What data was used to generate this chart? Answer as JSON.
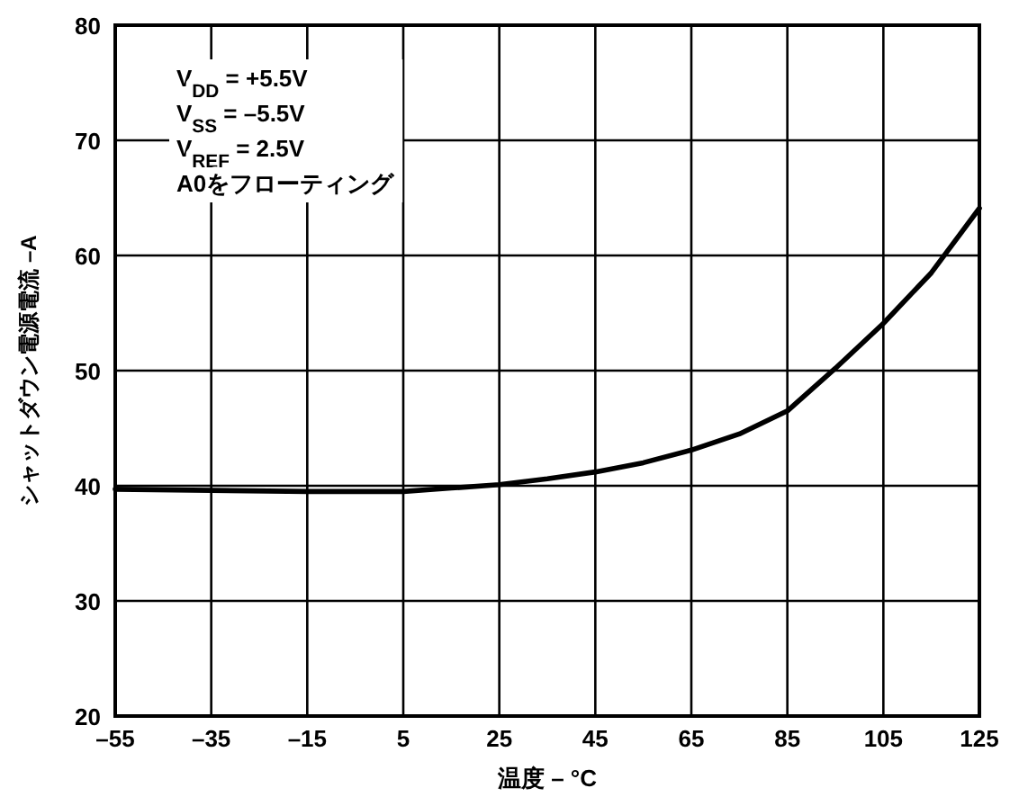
{
  "chart_data": {
    "type": "line",
    "xlabel": "温度 – °C",
    "ylabel": "シャットダウン電源電流 –A",
    "annotations": [
      "V$_{DD}$ = +5.5V",
      "V$_{SS}$ = –5.5V",
      "V$_{REF}$ = 2.5V",
      "A0をフローティング"
    ],
    "x": [
      -55,
      -35,
      -15,
      5,
      15,
      25,
      35,
      45,
      55,
      65,
      75,
      85,
      95,
      105,
      115,
      125
    ],
    "series": [
      {
        "color": "#000000",
        "values": [
          39.7,
          39.6,
          39.5,
          39.5,
          39.8,
          40.1,
          40.6,
          41.2,
          42.0,
          43.1,
          44.5,
          46.5,
          50.2,
          54.1,
          58.5,
          64.1
        ]
      }
    ],
    "xlim": [
      -55,
      125
    ],
    "ylim": [
      20,
      80
    ],
    "xticks": [
      {
        "value": -55,
        "label": "–55"
      },
      {
        "value": -35,
        "label": "–35"
      },
      {
        "value": -15,
        "label": "–15"
      },
      5,
      25,
      45,
      65,
      85,
      105,
      125
    ],
    "yticks": [
      20,
      30,
      40,
      50,
      60,
      70,
      80
    ],
    "grid": true,
    "marker": "none",
    "line_style": "solid"
  }
}
